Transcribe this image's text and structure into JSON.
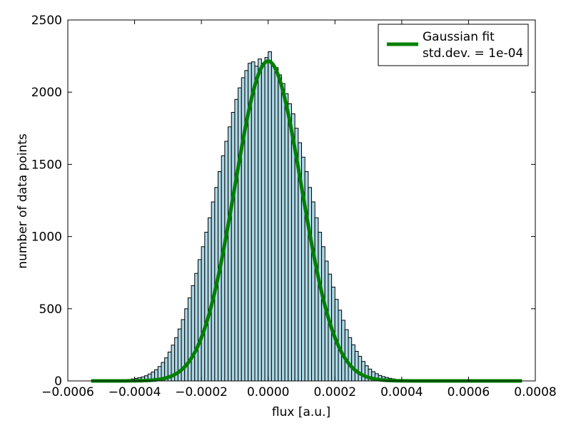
{
  "chart_data": {
    "type": "bar",
    "subtype": "histogram with fitted curve",
    "title": "",
    "xlabel": "flux [a.u.]",
    "ylabel": "number of data points",
    "xlim": [
      -0.0006,
      0.0008
    ],
    "ylim": [
      0,
      2500
    ],
    "xticks": [
      {
        "value": -0.0006,
        "label": "−0.0006"
      },
      {
        "value": -0.0004,
        "label": "−0.0004"
      },
      {
        "value": -0.0002,
        "label": "−0.0002"
      },
      {
        "value": 0.0,
        "label": "0.0000"
      },
      {
        "value": 0.0002,
        "label": "0.0002"
      },
      {
        "value": 0.0004,
        "label": "0.0004"
      },
      {
        "value": 0.0006,
        "label": "0.0006"
      },
      {
        "value": 0.0008,
        "label": "0.0008"
      }
    ],
    "yticks": [
      {
        "value": 0,
        "label": "0"
      },
      {
        "value": 500,
        "label": "500"
      },
      {
        "value": 1000,
        "label": "1000"
      },
      {
        "value": 1500,
        "label": "1500"
      },
      {
        "value": 2000,
        "label": "2000"
      },
      {
        "value": 2500,
        "label": "2500"
      }
    ],
    "grid": false,
    "legend": {
      "position": "top-right",
      "line1": "Gaussian fit",
      "line2": "std.dev. = 1e-04"
    },
    "histogram": {
      "bin_width": 1e-05,
      "color": "#add8e6",
      "edge_color": "#000000",
      "bins": [
        {
          "x0": -0.00053,
          "count": 1
        },
        {
          "x0": -0.00052,
          "count": 1
        },
        {
          "x0": -0.00051,
          "count": 1
        },
        {
          "x0": -0.0005,
          "count": 2
        },
        {
          "x0": -0.00049,
          "count": 2
        },
        {
          "x0": -0.00048,
          "count": 3
        },
        {
          "x0": -0.00047,
          "count": 3
        },
        {
          "x0": -0.00046,
          "count": 4
        },
        {
          "x0": -0.00045,
          "count": 5
        },
        {
          "x0": -0.00044,
          "count": 6
        },
        {
          "x0": -0.00043,
          "count": 8
        },
        {
          "x0": -0.00042,
          "count": 10
        },
        {
          "x0": -0.00041,
          "count": 14
        },
        {
          "x0": -0.0004,
          "count": 18
        },
        {
          "x0": -0.00039,
          "count": 22
        },
        {
          "x0": -0.00038,
          "count": 28
        },
        {
          "x0": -0.00037,
          "count": 36
        },
        {
          "x0": -0.00036,
          "count": 48
        },
        {
          "x0": -0.00035,
          "count": 62
        },
        {
          "x0": -0.00034,
          "count": 78
        },
        {
          "x0": -0.00033,
          "count": 100
        },
        {
          "x0": -0.00032,
          "count": 128
        },
        {
          "x0": -0.00031,
          "count": 160
        },
        {
          "x0": -0.0003,
          "count": 200
        },
        {
          "x0": -0.00029,
          "count": 248
        },
        {
          "x0": -0.00028,
          "count": 300
        },
        {
          "x0": -0.00027,
          "count": 360
        },
        {
          "x0": -0.00026,
          "count": 425
        },
        {
          "x0": -0.00025,
          "count": 500
        },
        {
          "x0": -0.00024,
          "count": 575
        },
        {
          "x0": -0.00023,
          "count": 660
        },
        {
          "x0": -0.00022,
          "count": 745
        },
        {
          "x0": -0.00021,
          "count": 840
        },
        {
          "x0": -0.0002,
          "count": 930
        },
        {
          "x0": -0.00019,
          "count": 1030
        },
        {
          "x0": -0.00018,
          "count": 1130
        },
        {
          "x0": -0.00017,
          "count": 1240
        },
        {
          "x0": -0.00016,
          "count": 1340
        },
        {
          "x0": -0.00015,
          "count": 1450
        },
        {
          "x0": -0.00014,
          "count": 1560
        },
        {
          "x0": -0.00013,
          "count": 1660
        },
        {
          "x0": -0.00012,
          "count": 1760
        },
        {
          "x0": -0.00011,
          "count": 1860
        },
        {
          "x0": -0.0001,
          "count": 1950
        },
        {
          "x0": -9e-05,
          "count": 2030
        },
        {
          "x0": -8e-05,
          "count": 2100
        },
        {
          "x0": -7e-05,
          "count": 2150
        },
        {
          "x0": -6e-05,
          "count": 2200
        },
        {
          "x0": -5e-05,
          "count": 2210
        },
        {
          "x0": -4e-05,
          "count": 2180
        },
        {
          "x0": -3e-05,
          "count": 2230
        },
        {
          "x0": -2e-05,
          "count": 2200
        },
        {
          "x0": -1e-05,
          "count": 2240
        },
        {
          "x0": 0.0,
          "count": 2280
        },
        {
          "x0": 1e-05,
          "count": 2180
        },
        {
          "x0": 2e-05,
          "count": 2170
        },
        {
          "x0": 3e-05,
          "count": 2120
        },
        {
          "x0": 4e-05,
          "count": 2060
        },
        {
          "x0": 5e-05,
          "count": 1990
        },
        {
          "x0": 6e-05,
          "count": 1920
        },
        {
          "x0": 7e-05,
          "count": 1850
        },
        {
          "x0": 8e-05,
          "count": 1750
        },
        {
          "x0": 9e-05,
          "count": 1650
        },
        {
          "x0": 0.0001,
          "count": 1550
        },
        {
          "x0": 0.00011,
          "count": 1450
        },
        {
          "x0": 0.00012,
          "count": 1340
        },
        {
          "x0": 0.00013,
          "count": 1240
        },
        {
          "x0": 0.00014,
          "count": 1130
        },
        {
          "x0": 0.00015,
          "count": 1030
        },
        {
          "x0": 0.00016,
          "count": 930
        },
        {
          "x0": 0.00017,
          "count": 830
        },
        {
          "x0": 0.00018,
          "count": 740
        },
        {
          "x0": 0.00019,
          "count": 650
        },
        {
          "x0": 0.0002,
          "count": 565
        },
        {
          "x0": 0.00021,
          "count": 490
        },
        {
          "x0": 0.00022,
          "count": 420
        },
        {
          "x0": 0.00023,
          "count": 355
        },
        {
          "x0": 0.00024,
          "count": 300
        },
        {
          "x0": 0.00025,
          "count": 250
        },
        {
          "x0": 0.00026,
          "count": 205
        },
        {
          "x0": 0.00027,
          "count": 170
        },
        {
          "x0": 0.00028,
          "count": 135
        },
        {
          "x0": 0.00029,
          "count": 105
        },
        {
          "x0": 0.0003,
          "count": 82
        },
        {
          "x0": 0.00031,
          "count": 64
        },
        {
          "x0": 0.00032,
          "count": 50
        },
        {
          "x0": 0.00033,
          "count": 38
        },
        {
          "x0": 0.00034,
          "count": 30
        },
        {
          "x0": 0.00035,
          "count": 24
        },
        {
          "x0": 0.00036,
          "count": 18
        },
        {
          "x0": 0.00037,
          "count": 14
        },
        {
          "x0": 0.00038,
          "count": 10
        },
        {
          "x0": 0.00039,
          "count": 8
        },
        {
          "x0": 0.0004,
          "count": 6
        },
        {
          "x0": 0.00041,
          "count": 5
        },
        {
          "x0": 0.00042,
          "count": 4
        },
        {
          "x0": 0.00043,
          "count": 3
        },
        {
          "x0": 0.00044,
          "count": 3
        },
        {
          "x0": 0.00045,
          "count": 2
        },
        {
          "x0": 0.00046,
          "count": 2
        },
        {
          "x0": 0.00047,
          "count": 2
        },
        {
          "x0": 0.00048,
          "count": 1
        },
        {
          "x0": 0.00049,
          "count": 1
        },
        {
          "x0": 0.0005,
          "count": 1
        },
        {
          "x0": 0.00051,
          "count": 1
        },
        {
          "x0": 0.00052,
          "count": 1
        },
        {
          "x0": 0.00053,
          "count": 1
        },
        {
          "x0": 0.00054,
          "count": 1
        },
        {
          "x0": 0.00055,
          "count": 1
        },
        {
          "x0": 0.00056,
          "count": 1
        },
        {
          "x0": 0.00057,
          "count": 1
        },
        {
          "x0": 0.00058,
          "count": 1
        },
        {
          "x0": 0.00059,
          "count": 1
        },
        {
          "x0": 0.0006,
          "count": 1
        },
        {
          "x0": 0.00061,
          "count": 1
        },
        {
          "x0": 0.00062,
          "count": 1
        },
        {
          "x0": 0.00063,
          "count": 1
        },
        {
          "x0": 0.00064,
          "count": 1
        },
        {
          "x0": 0.00065,
          "count": 1
        },
        {
          "x0": 0.00066,
          "count": 1
        },
        {
          "x0": 0.00067,
          "count": 1
        },
        {
          "x0": 0.00068,
          "count": 1
        },
        {
          "x0": 0.00069,
          "count": 1
        },
        {
          "x0": 0.0007,
          "count": 1
        },
        {
          "x0": 0.00071,
          "count": 1
        },
        {
          "x0": 0.00072,
          "count": 1
        },
        {
          "x0": 0.00073,
          "count": 1
        },
        {
          "x0": 0.00074,
          "count": 1
        },
        {
          "x0": 0.00075,
          "count": 1
        }
      ]
    },
    "fit": {
      "type": "line",
      "color": "#008000",
      "mean": 0.0,
      "std": 0.0001,
      "amplitude": 2215,
      "x_range": [
        -0.00053,
        0.00076
      ]
    }
  }
}
